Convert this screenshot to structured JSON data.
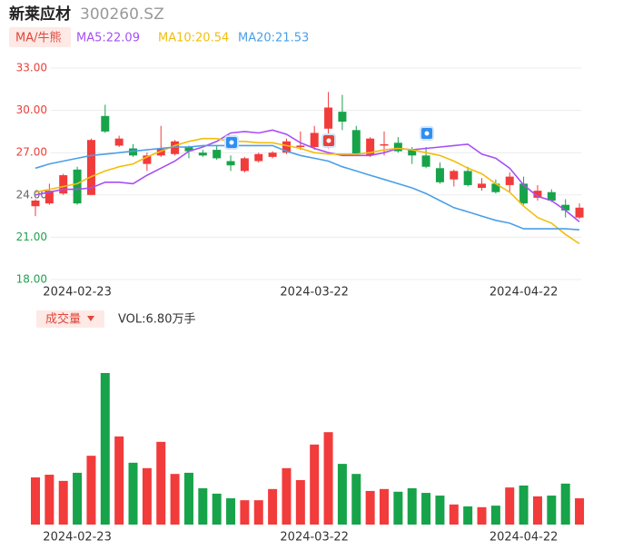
{
  "header": {
    "title": "新莱应材",
    "code": "300260.SZ"
  },
  "chart_data": [
    {
      "type": "candlestick",
      "legend_button": "MA/牛熊",
      "categories": [
        null,
        null,
        null,
        "2024-02-23",
        null,
        null,
        null,
        null,
        null,
        null,
        null,
        null,
        null,
        null,
        null,
        null,
        null,
        null,
        null,
        null,
        "2024-03-22",
        null,
        null,
        null,
        null,
        null,
        null,
        null,
        null,
        null,
        null,
        null,
        null,
        null,
        null,
        "2024-04-22",
        null,
        null,
        null,
        null
      ],
      "open": [
        23.2,
        23.4,
        24.1,
        25.8,
        24.0,
        29.6,
        27.5,
        27.3,
        26.2,
        26.8,
        26.9,
        27.4,
        27.0,
        27.2,
        26.4,
        25.7,
        26.4,
        26.7,
        27.0,
        27.4,
        27.4,
        28.7,
        29.9,
        28.6,
        26.8,
        27.5,
        27.7,
        27.2,
        26.8,
        25.9,
        25.1,
        25.7,
        24.5,
        24.8,
        24.7,
        24.8,
        23.8,
        24.2,
        23.3,
        22.4
      ],
      "close": [
        23.6,
        24.3,
        25.4,
        23.4,
        27.9,
        28.5,
        28.0,
        26.8,
        26.8,
        27.3,
        27.8,
        27.1,
        26.8,
        26.6,
        26.1,
        26.6,
        26.9,
        27.0,
        27.8,
        27.5,
        28.4,
        30.2,
        29.2,
        26.9,
        28.0,
        27.6,
        27.1,
        26.8,
        26.0,
        24.9,
        25.7,
        24.7,
        24.8,
        24.2,
        25.3,
        23.4,
        24.3,
        23.6,
        22.9,
        23.1
      ],
      "high": [
        23.7,
        24.8,
        25.5,
        26.0,
        28.0,
        30.4,
        28.2,
        27.6,
        27.0,
        28.9,
        27.9,
        27.5,
        27.2,
        27.5,
        26.8,
        26.7,
        27.0,
        27.1,
        28.0,
        28.5,
        28.9,
        31.3,
        31.1,
        28.9,
        28.1,
        28.5,
        28.1,
        27.4,
        27.4,
        26.3,
        25.8,
        26.0,
        25.2,
        25.1,
        25.6,
        25.3,
        24.7,
        24.4,
        23.7,
        23.4
      ],
      "low": [
        22.5,
        23.3,
        24.0,
        23.3,
        24.0,
        28.4,
        27.4,
        26.7,
        25.7,
        26.7,
        26.8,
        26.6,
        26.7,
        26.5,
        25.7,
        25.6,
        26.3,
        26.6,
        26.9,
        27.2,
        27.2,
        27.3,
        28.6,
        26.8,
        26.7,
        26.8,
        27.0,
        26.2,
        25.9,
        24.8,
        24.6,
        24.6,
        24.3,
        24.1,
        24.2,
        23.3,
        23.6,
        23.5,
        22.4,
        22.3
      ],
      "up_color": "#f23b3b",
      "down_color": "#17a34a",
      "series": [
        {
          "name": "MA5:22.09",
          "color": "#a64ff5",
          "values": [
            24.0,
            24.2,
            24.4,
            24.4,
            24.5,
            24.9,
            24.9,
            24.8,
            25.4,
            25.9,
            26.4,
            27.1,
            27.4,
            27.8,
            28.4,
            28.5,
            28.4,
            28.6,
            28.3,
            27.7,
            27.3,
            27.0,
            26.8,
            26.8,
            26.8,
            27.0,
            27.3,
            27.2,
            27.3,
            27.4,
            27.5,
            27.6,
            26.9,
            26.6,
            25.9,
            24.7,
            23.9,
            23.6,
            22.9,
            22.1
          ]
        },
        {
          "name": "MA10:20.54",
          "color": "#f2be0c",
          "values": [
            24.2,
            24.4,
            24.6,
            24.8,
            25.3,
            25.7,
            26.0,
            26.2,
            26.7,
            27.1,
            27.5,
            27.8,
            28.0,
            28.0,
            27.8,
            27.8,
            27.7,
            27.7,
            27.5,
            27.3,
            27.0,
            26.9,
            26.9,
            26.9,
            27.0,
            27.2,
            27.3,
            27.2,
            27.0,
            26.8,
            26.4,
            25.9,
            25.5,
            24.8,
            24.2,
            23.2,
            22.4,
            22.0,
            21.2,
            20.54
          ]
        },
        {
          "name": "MA20:21.53",
          "color": "#4a9fe8",
          "values": [
            25.9,
            26.2,
            26.4,
            26.6,
            26.8,
            26.9,
            27.0,
            27.1,
            27.2,
            27.3,
            27.4,
            27.4,
            27.5,
            27.5,
            27.5,
            27.5,
            27.5,
            27.5,
            27.1,
            26.8,
            26.6,
            26.4,
            26.0,
            25.7,
            25.4,
            25.1,
            24.8,
            24.5,
            24.1,
            23.6,
            23.1,
            22.8,
            22.5,
            22.2,
            22.0,
            21.6,
            21.6,
            21.6,
            21.6,
            21.53
          ]
        }
      ],
      "ylim": [
        18,
        33
      ],
      "yticks": [
        {
          "value": 33,
          "label": "33.00"
        },
        {
          "value": 30,
          "label": "30.00"
        },
        {
          "value": 27,
          "label": "27.00"
        },
        {
          "value": 24,
          "label": "24.00"
        },
        {
          "value": 21,
          "label": "21.00"
        },
        {
          "value": 18,
          "label": "18.00"
        }
      ],
      "ytick_colors": [
        "#e8403a",
        "#e8403a",
        "#e8403a",
        "#666666",
        "#22a050",
        "#22a050"
      ],
      "grid": true
    },
    {
      "type": "bar",
      "legend_button": "成交量",
      "title": "VOL:6.80万手",
      "categories": [
        null,
        null,
        null,
        "2024-02-23",
        null,
        null,
        null,
        null,
        null,
        null,
        null,
        null,
        null,
        null,
        null,
        null,
        null,
        null,
        null,
        null,
        "2024-03-22",
        null,
        null,
        null,
        null,
        null,
        null,
        null,
        null,
        null,
        null,
        null,
        null,
        null,
        null,
        "2024-04-22",
        null,
        null,
        null,
        null
      ],
      "values": [
        12.2,
        12.9,
        11.3,
        13.4,
        17.8,
        39.2,
        22.8,
        16.0,
        14.6,
        21.4,
        13.1,
        13.4,
        9.4,
        8.0,
        6.8,
        6.3,
        6.3,
        9.2,
        14.6,
        11.5,
        20.7,
        23.9,
        15.7,
        13.1,
        8.7,
        9.2,
        8.5,
        9.4,
        8.2,
        7.5,
        5.2,
        4.7,
        4.5,
        4.9,
        9.6,
        10.1,
        7.3,
        7.5,
        10.6,
        6.8
      ]
    }
  ]
}
